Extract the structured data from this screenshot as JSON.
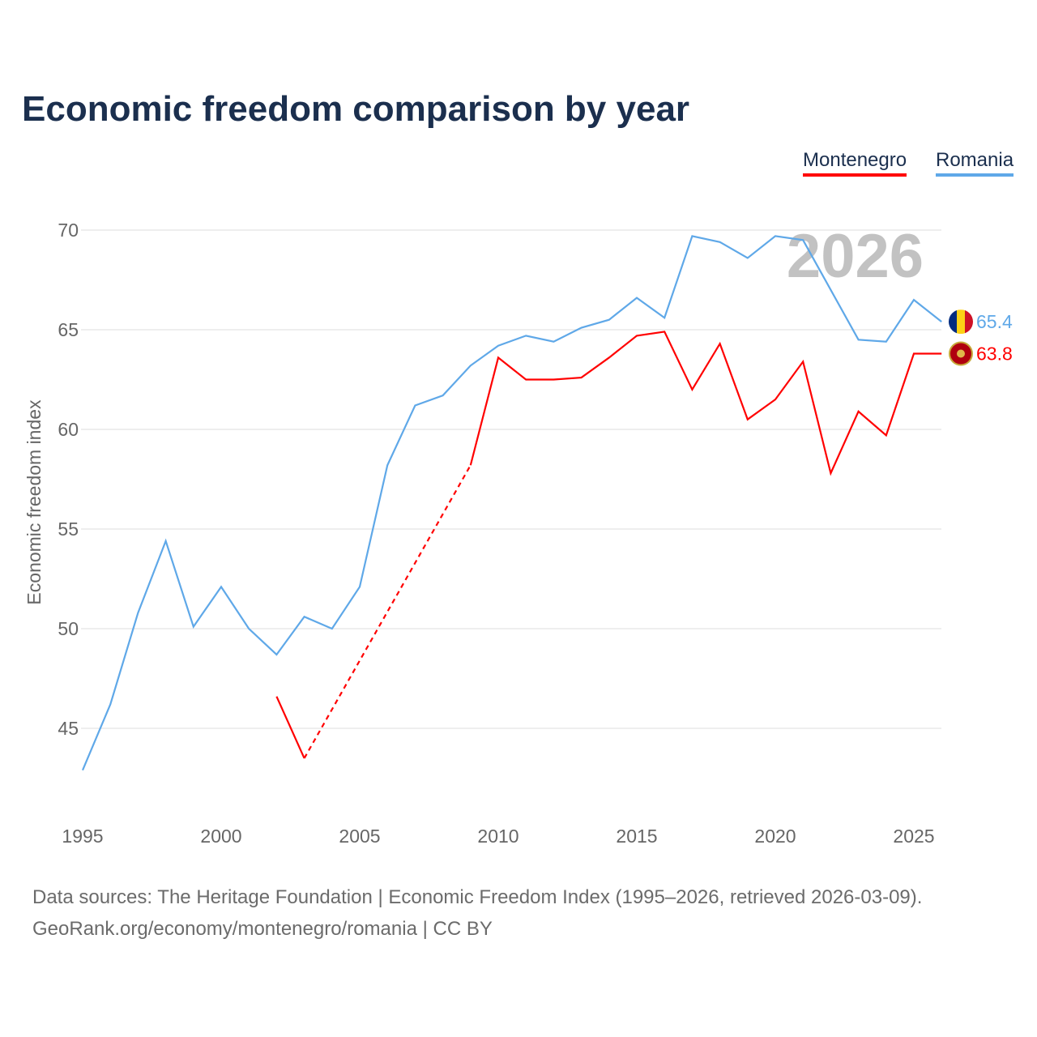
{
  "title": "Economic freedom comparison by year",
  "legend": [
    {
      "label": "Montenegro",
      "color": "#ff0000"
    },
    {
      "label": "Romania",
      "color": "#5fa8e8"
    }
  ],
  "watermark_year": "2026",
  "source_line1": "Data sources: The Heritage Foundation | Economic Freedom Index (1995–2026, retrieved 2026-03-09).",
  "source_line2": "GeoRank.org/economy/montenegro/romania | CC BY",
  "chart_data": {
    "type": "line",
    "title": "Economic freedom comparison by year",
    "xlabel": "",
    "ylabel": "Economic freedom index",
    "xlim": [
      1995,
      2026
    ],
    "ylim": [
      41,
      72
    ],
    "xticks": [
      1995,
      2000,
      2005,
      2010,
      2015,
      2020,
      2025
    ],
    "yticks": [
      45,
      50,
      55,
      60,
      65,
      70
    ],
    "grid": true,
    "legend_position": "top-right",
    "series": [
      {
        "name": "Romania",
        "color": "#5fa8e8",
        "end_label": "65.4",
        "x": [
          1995,
          1996,
          1997,
          1998,
          1999,
          2000,
          2001,
          2002,
          2003,
          2004,
          2005,
          2006,
          2007,
          2008,
          2009,
          2010,
          2011,
          2012,
          2013,
          2014,
          2015,
          2016,
          2017,
          2018,
          2019,
          2020,
          2021,
          2022,
          2023,
          2024,
          2025,
          2026
        ],
        "y": [
          42.9,
          46.2,
          50.8,
          54.4,
          50.1,
          52.1,
          50.0,
          48.7,
          50.6,
          50.0,
          52.1,
          58.2,
          61.2,
          61.7,
          63.2,
          64.2,
          64.7,
          64.4,
          65.1,
          65.5,
          66.6,
          65.6,
          69.7,
          69.4,
          68.6,
          69.7,
          69.5,
          67.0,
          64.5,
          64.4,
          66.5,
          65.4
        ]
      },
      {
        "name": "Montenegro",
        "color": "#ff0000",
        "end_label": "63.8",
        "x": [
          2002,
          2003,
          2009,
          2010,
          2011,
          2012,
          2013,
          2014,
          2015,
          2016,
          2017,
          2018,
          2019,
          2020,
          2021,
          2022,
          2023,
          2024,
          2025,
          2026
        ],
        "y": [
          46.6,
          43.5,
          58.2,
          63.6,
          62.5,
          62.5,
          62.6,
          63.6,
          64.7,
          64.9,
          62.0,
          64.3,
          60.5,
          61.5,
          63.4,
          57.8,
          60.9,
          59.7,
          63.8,
          63.8
        ],
        "gap_after_year": 2003
      }
    ]
  }
}
